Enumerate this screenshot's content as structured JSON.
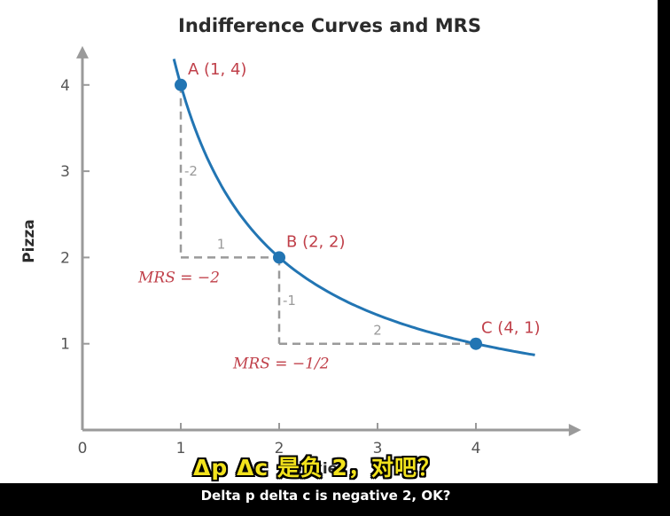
{
  "chart_data": {
    "type": "line",
    "title": "Indifference Curves and MRS",
    "xlabel": "Cookies",
    "ylabel": "Pizza",
    "xlim": [
      0,
      4.8
    ],
    "ylim": [
      0,
      4.4
    ],
    "x_ticks": [
      "0",
      "1",
      "2",
      "3",
      "4"
    ],
    "y_ticks": [
      "1",
      "2",
      "3",
      "4"
    ],
    "grid": false,
    "curve": {
      "equation": "y = 4 / x",
      "x_range": [
        0.93,
        4.6
      ],
      "color": "#2275b3"
    },
    "points": [
      {
        "label": "A (1, 4)",
        "x": 1,
        "y": 4
      },
      {
        "label": "B (2, 2)",
        "x": 2,
        "y": 2
      },
      {
        "label": "C (4, 1)",
        "x": 4,
        "y": 1
      }
    ],
    "steps": [
      {
        "vertical_label": "-2",
        "horizontal_label": "1",
        "mrs_label": "MRS = −2"
      },
      {
        "vertical_label": "-1",
        "horizontal_label": "2",
        "mrs_label": "MRS = −1/2"
      }
    ],
    "colors": {
      "curve": "#2275b3",
      "point_label": "#c0404a",
      "axis": "#9a9a9a",
      "guide": "#9a9a9a"
    }
  },
  "subtitles": {
    "chinese": "Δp Δc 是负 2，对吧？",
    "english": "Delta p delta c is negative 2, OK?"
  }
}
